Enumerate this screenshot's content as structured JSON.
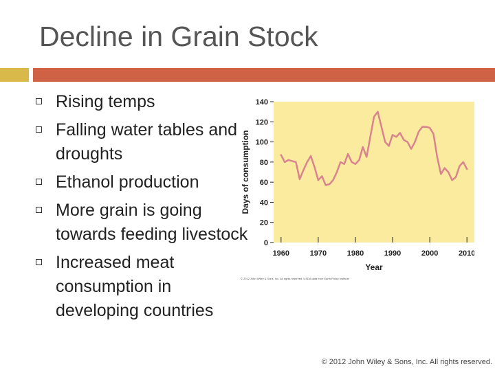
{
  "slide": {
    "title": "Decline in Grain Stock",
    "bullets": [
      "Rising temps",
      "Falling water tables and droughts",
      "Ethanol production",
      "More grain is going towards feeding livestock",
      "Increased meat consumption in developing countries"
    ],
    "copyright": "© 2012 John Wiley & Sons, Inc. All rights reserved.",
    "figure_credit": "© 2012 John Wiley & Sons, Inc. All rights reserved. USDA data from Earth Policy Institute"
  },
  "colors": {
    "title": "#555555",
    "accent_gold": "#d8b94a",
    "accent_red": "#cf6245",
    "plot_background": "#faeb9f",
    "line": "#d9838f"
  },
  "chart_data": {
    "type": "line",
    "title": "",
    "xlabel": "Year",
    "ylabel": "Days of consumption",
    "xlim": [
      1958,
      2012
    ],
    "ylim": [
      0,
      140
    ],
    "xticks": [
      1960,
      1970,
      1980,
      1990,
      2000,
      2010
    ],
    "yticks": [
      0,
      20,
      40,
      60,
      80,
      100,
      120,
      140
    ],
    "grid": false,
    "series": [
      {
        "x": [
          1960,
          1961,
          1962,
          1963,
          1964,
          1965,
          1966,
          1967,
          1968,
          1969,
          1970,
          1971,
          1972,
          1973,
          1974,
          1975,
          1976,
          1977,
          1978,
          1979,
          1980,
          1981,
          1982,
          1983,
          1984,
          1985,
          1986,
          1987,
          1988,
          1989,
          1990,
          1991,
          1992,
          1993,
          1994,
          1995,
          1996,
          1997,
          1998,
          1999,
          2000,
          2001,
          2002,
          2003,
          2004,
          2005,
          2006,
          2007,
          2008,
          2009,
          2010
        ],
        "values": [
          87,
          80,
          82,
          81,
          80,
          63,
          72,
          80,
          86,
          75,
          62,
          66,
          57,
          58,
          62,
          70,
          80,
          78,
          88,
          80,
          78,
          82,
          95,
          85,
          105,
          125,
          130,
          115,
          100,
          96,
          107,
          105,
          109,
          102,
          100,
          93,
          100,
          110,
          115,
          115,
          114,
          108,
          85,
          68,
          74,
          70,
          62,
          65,
          76,
          80,
          73
        ]
      }
    ]
  }
}
